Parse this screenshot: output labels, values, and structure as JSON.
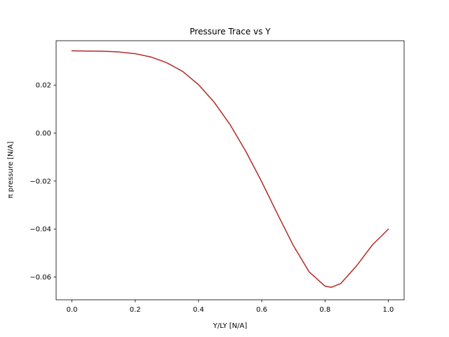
{
  "chart_data": {
    "type": "line",
    "title": "Pressure Trace vs Y",
    "xlabel": "Y/LY [N/A]",
    "ylabel": "π pressure [N/A]",
    "xlim": [
      -0.05,
      1.05
    ],
    "ylim": [
      -0.0695,
      0.0385
    ],
    "x_ticks": [
      0.0,
      0.2,
      0.4,
      0.6,
      0.8,
      1.0
    ],
    "x_tick_labels": [
      "0.0",
      "0.2",
      "0.4",
      "0.6",
      "0.8",
      "1.0"
    ],
    "y_ticks": [
      0.02,
      0.0,
      -0.02,
      -0.04,
      -0.06
    ],
    "y_tick_labels": [
      "0.02",
      "0.00",
      "−0.02",
      "−0.04",
      "−0.06"
    ],
    "grid": false,
    "series": [
      {
        "color": "#b22a26",
        "x": [
          0.0,
          0.05,
          0.1,
          0.15,
          0.2,
          0.25,
          0.3,
          0.35,
          0.4,
          0.45,
          0.5,
          0.55,
          0.6,
          0.65,
          0.7,
          0.75,
          0.8,
          0.82,
          0.85,
          0.9,
          0.95,
          1.0
        ],
        "y": [
          0.0343,
          0.0342,
          0.0341,
          0.0338,
          0.0331,
          0.0317,
          0.0293,
          0.0257,
          0.0202,
          0.0128,
          0.0035,
          -0.0077,
          -0.0203,
          -0.0338,
          -0.0469,
          -0.0579,
          -0.0638,
          -0.0643,
          -0.0627,
          -0.0553,
          -0.0466,
          -0.0401
        ]
      }
    ]
  }
}
